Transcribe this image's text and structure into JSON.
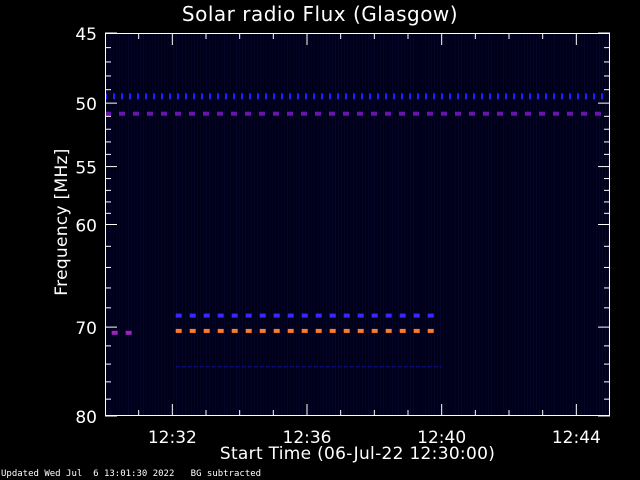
{
  "chart_data": {
    "type": "heatmap",
    "title": "Solar radio Flux (Glasgow)",
    "xlabel": "Start Time (06-Jul-22 12:30:00)",
    "ylabel": "Frequency [MHz]",
    "x_tick_labels": [
      "12:32",
      "12:36",
      "12:40",
      "12:44"
    ],
    "x_tick_minutes": [
      2,
      6,
      10,
      14
    ],
    "xlim_minutes": [
      0,
      15
    ],
    "y_tick_labels": [
      "45",
      "50",
      "55",
      "60",
      "70",
      "80"
    ],
    "y_tick_values": [
      45,
      50,
      55,
      60,
      70,
      80
    ],
    "ylim": [
      80,
      45
    ],
    "y_scale": "log",
    "grid": false,
    "background_color": "#00001a",
    "interference_bands": [
      {
        "freq_mhz": 49.5,
        "start_min": 0,
        "end_min": 15,
        "color": "#2020ff"
      },
      {
        "freq_mhz": 50.8,
        "start_min": 0,
        "end_min": 15,
        "color": "#6a14b0"
      },
      {
        "freq_mhz": 68.8,
        "start_min": 2.1,
        "end_min": 10,
        "color": "#3a28ff"
      },
      {
        "freq_mhz": 70.4,
        "start_min": 2.1,
        "end_min": 10,
        "color": "#ff7a28"
      },
      {
        "freq_mhz": 70.6,
        "start_min": 0.2,
        "end_min": 0.8,
        "color": "#a020c0"
      },
      {
        "freq_mhz": 74.3,
        "start_min": 2.1,
        "end_min": 10,
        "color": "#1010a0"
      }
    ]
  },
  "footer": {
    "updated": "Updated Wed Jul  6 13:01:30 2022",
    "bg_note": "BG subtracted"
  }
}
